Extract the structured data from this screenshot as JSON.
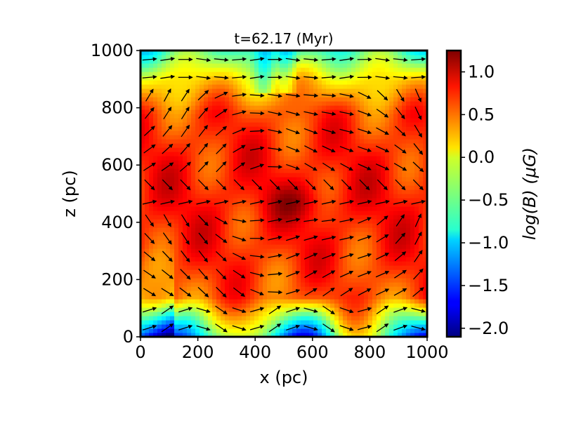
{
  "chart_data": {
    "type": "heatmap",
    "title": "t=62.17 (Myr)",
    "xlabel": "x (pc)",
    "ylabel": "z (pc)",
    "xlim": [
      0,
      1000
    ],
    "ylim": [
      0,
      1000
    ],
    "x_ticks": [
      "0",
      "200",
      "400",
      "600",
      "800",
      "1000"
    ],
    "x_tick_values": [
      0,
      200,
      400,
      600,
      800,
      1000
    ],
    "y_ticks": [
      "0",
      "200",
      "400",
      "600",
      "800",
      "1000"
    ],
    "y_tick_values": [
      0,
      200,
      400,
      600,
      800,
      1000
    ],
    "colorbar": {
      "label": "log(B) (μG)",
      "colormap": "jet",
      "range": [
        -2.1,
        1.25
      ],
      "tick_values": [
        -2.0,
        -1.5,
        -1.0,
        -0.5,
        0.0,
        0.5,
        1.0
      ],
      "tick_labels": [
        "−2.0",
        "−1.5",
        "−1.0",
        "−0.5",
        "0.0",
        "0.5",
        "1.0"
      ]
    },
    "overlay": "magnetic field direction vectors (quiver)",
    "field_description": {
      "midplane_z_pc": 480,
      "midplane_value": 0.75,
      "bottom_edge_value": -1.2
    }
  }
}
